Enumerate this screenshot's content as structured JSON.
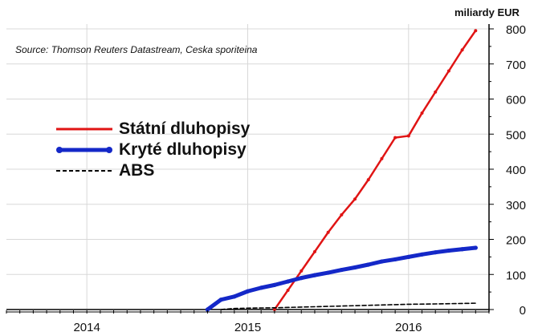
{
  "unit_label": "miliardy EUR",
  "source": "Source: Thomson Reuters Datastream, Ceska sporiteina",
  "legend": [
    {
      "label": "Státní dluhopisy",
      "color": "#e01414",
      "style": "solid-thin-dots"
    },
    {
      "label": "Kryté dluhopisy",
      "color": "#1428c8",
      "style": "solid-thick-dots"
    },
    {
      "label": "ABS",
      "color": "#000000",
      "style": "dashed"
    }
  ],
  "chart_data": {
    "type": "line",
    "title": "",
    "xlabel": "",
    "ylabel": "miliardy EUR",
    "ylim": [
      0,
      800
    ],
    "yticks": [
      0,
      100,
      200,
      300,
      400,
      500,
      600,
      700,
      800
    ],
    "xticks": [
      "2014",
      "2015",
      "2016"
    ],
    "xlim": [
      "2013-07",
      "2016-07"
    ],
    "grid": true,
    "legend_position": "left-middle",
    "series": [
      {
        "name": "Státní dluhopisy",
        "color": "#e01414",
        "points": [
          [
            "2015-03",
            0
          ],
          [
            "2015-04",
            55
          ],
          [
            "2015-05",
            110
          ],
          [
            "2015-06",
            165
          ],
          [
            "2015-07",
            220
          ],
          [
            "2015-08",
            270
          ],
          [
            "2015-09",
            315
          ],
          [
            "2015-10",
            370
          ],
          [
            "2015-11",
            430
          ],
          [
            "2015-12",
            490
          ],
          [
            "2016-01",
            495
          ],
          [
            "2016-02",
            560
          ],
          [
            "2016-03",
            620
          ],
          [
            "2016-04",
            680
          ],
          [
            "2016-05",
            740
          ],
          [
            "2016-06",
            795
          ]
        ]
      },
      {
        "name": "Kryté dluhopisy",
        "color": "#1428c8",
        "points": [
          [
            "2014-10",
            0
          ],
          [
            "2014-11",
            28
          ],
          [
            "2014-12",
            37
          ],
          [
            "2015-01",
            52
          ],
          [
            "2015-02",
            62
          ],
          [
            "2015-03",
            70
          ],
          [
            "2015-04",
            80
          ],
          [
            "2015-05",
            90
          ],
          [
            "2015-06",
            98
          ],
          [
            "2015-07",
            105
          ],
          [
            "2015-08",
            113
          ],
          [
            "2015-09",
            120
          ],
          [
            "2015-10",
            128
          ],
          [
            "2015-11",
            137
          ],
          [
            "2015-12",
            143
          ],
          [
            "2016-01",
            150
          ],
          [
            "2016-02",
            157
          ],
          [
            "2016-03",
            163
          ],
          [
            "2016-04",
            168
          ],
          [
            "2016-05",
            172
          ],
          [
            "2016-06",
            176
          ]
        ]
      },
      {
        "name": "ABS",
        "color": "#000000",
        "points": [
          [
            "2014-11",
            0
          ],
          [
            "2014-12",
            3
          ],
          [
            "2015-01",
            4
          ],
          [
            "2015-03",
            5
          ],
          [
            "2015-05",
            7
          ],
          [
            "2015-07",
            9
          ],
          [
            "2015-09",
            11
          ],
          [
            "2015-11",
            13
          ],
          [
            "2016-01",
            15
          ],
          [
            "2016-03",
            16
          ],
          [
            "2016-06",
            18
          ]
        ]
      }
    ]
  }
}
